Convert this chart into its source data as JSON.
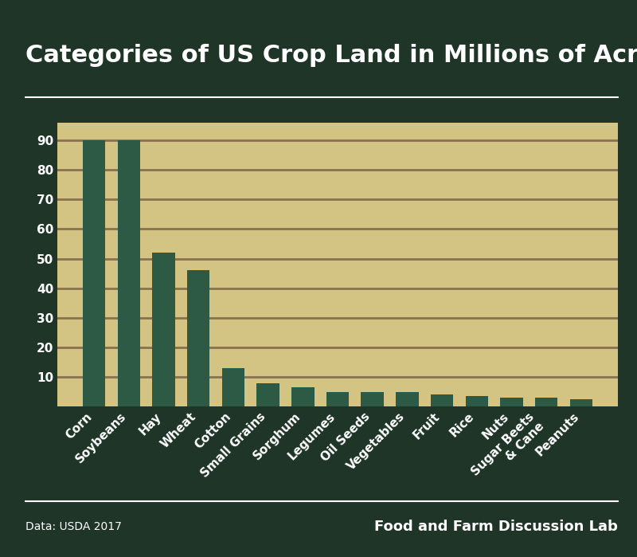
{
  "title": "Categories of US Crop Land in Millions of Acres",
  "categories": [
    "Corn",
    "Soybeans",
    "Hay",
    "Wheat",
    "Cotton",
    "Small Grains",
    "Sorghum",
    "Legumes",
    "Oil Seeds",
    "Vegetables",
    "Fruit",
    "Rice",
    "Nuts",
    "Sugar Beets\n& Cane",
    "Peanuts"
  ],
  "values": [
    90,
    90,
    52,
    46,
    13,
    8,
    6.5,
    5,
    5,
    5,
    4,
    3.5,
    3,
    3,
    2.5
  ],
  "bar_color": "#2d5a45",
  "background_color": "#1e3528",
  "plot_bg_color": "#d4c483",
  "grid_color": "#8a7050",
  "text_color": "#ffffff",
  "title_fontsize": 22,
  "tick_fontsize": 11,
  "footer_left": "Data: USDA 2017",
  "footer_right": "Food and Farm Discussion Lab",
  "ylim": [
    0,
    96
  ],
  "yticks": [
    10,
    20,
    30,
    40,
    50,
    60,
    70,
    80,
    90
  ]
}
